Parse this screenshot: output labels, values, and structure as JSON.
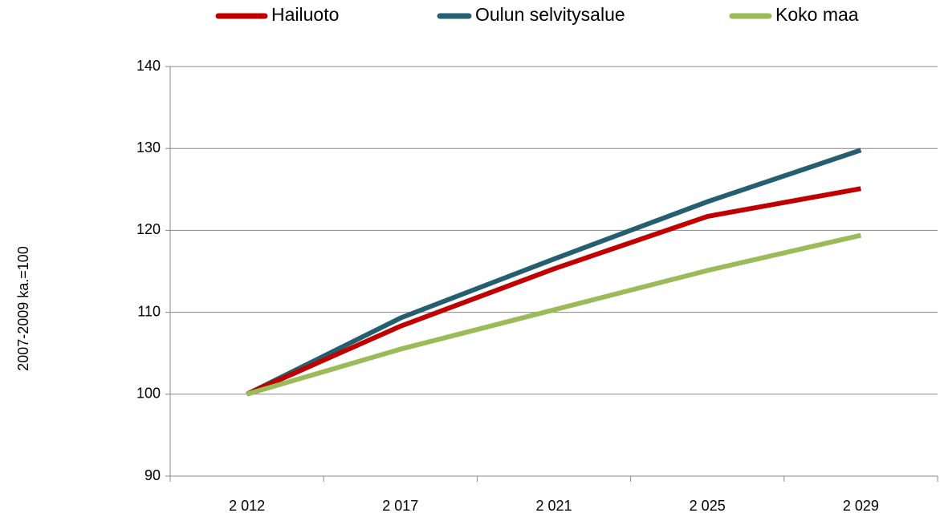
{
  "chart_data": {
    "type": "line",
    "y_label": "2007-2009 ka.=100",
    "categories": [
      "2 012",
      "2 017",
      "2 021",
      "2 025",
      "2 029"
    ],
    "series": [
      {
        "name": "Hailuoto",
        "color": "#c00000",
        "values": [
          100,
          108.3,
          115.3,
          121.7,
          125.1
        ]
      },
      {
        "name": "Oulun selvitysalue",
        "color": "#255e6e",
        "values": [
          100,
          109.3,
          116.5,
          123.5,
          129.8
        ]
      },
      {
        "name": "Koko maa",
        "color": "#9bbb59",
        "values": [
          100,
          105.5,
          110.3,
          115.1,
          119.4
        ]
      }
    ],
    "ylim": [
      90,
      140
    ],
    "yticks": [
      90,
      100,
      110,
      120,
      130,
      140
    ],
    "grid": true,
    "legend": "top"
  }
}
